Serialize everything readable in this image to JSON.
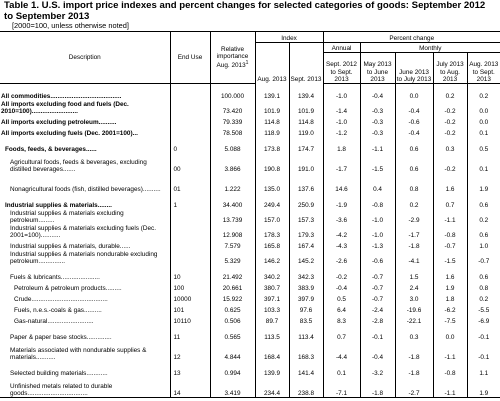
{
  "title": "Table 1. U.S. import price indexes and percent changes for selected categories of goods: September 2012 to September 2013",
  "subtitle": "[2000=100, unless otherwise noted]",
  "headers": {
    "description": "Description",
    "end_use": "End Use",
    "relative_importance": "Relative importance Aug. 2013",
    "relative_importance_sup": "1",
    "index": "Index",
    "aug_2013": "Aug. 2013",
    "sept_2013": "Sept. 2013",
    "percent_change": "Percent change",
    "annual": "Annual",
    "monthly": "Monthly",
    "sept_to_sept": "Sept. 2012 to Sept. 2013",
    "may_to_june": "May 2013 to June 2013",
    "june_to_july": "June 2013 to July 2013",
    "july_to_aug": "July 2013 to Aug. 2013",
    "aug_to_sept": "Aug. 2013 to Sept. 2013"
  },
  "rows": [
    {
      "desc": "All commodities",
      "dots": "........................................",
      "eu": "",
      "ri": "100.000",
      "aug": "139.1",
      "sep": "139.4",
      "ann": "-1.0",
      "m1": "-0.4",
      "m2": "0.0",
      "m3": "0.2",
      "m4": "0.2"
    },
    {
      "desc": "All imports excluding food and fuels (Dec. 2010=100)",
      "dots": "..........................",
      "eu": "",
      "ri": "73.420",
      "aug": "101.9",
      "sep": "101.9",
      "ann": "-1.4",
      "m1": "-0.3",
      "m2": "-0.4",
      "m3": "-0.2",
      "m4": "0.0"
    },
    {
      "desc": "All imports excluding petroleum",
      "dots": "..........",
      "eu": "",
      "ri": "79.339",
      "aug": "114.8",
      "sep": "114.8",
      "ann": "-1.0",
      "m1": "-0.3",
      "m2": "-0.6",
      "m3": "-0.2",
      "m4": "0.0"
    },
    {
      "desc": "All imports excluding fuels (Dec. 2001=100)",
      "dots": "...",
      "eu": "",
      "ri": "78.508",
      "aug": "118.9",
      "sep": "119.0",
      "ann": "-1.2",
      "m1": "-0.3",
      "m2": "-0.4",
      "m3": "-0.2",
      "m4": "0.1"
    },
    {
      "desc": "Foods, feeds, & beverages",
      "dots": "......",
      "eu": "0",
      "ri": "5.088",
      "aug": "173.8",
      "sep": "174.7",
      "ann": "1.8",
      "m1": "-1.1",
      "m2": "0.6",
      "m3": "0.3",
      "m4": "0.5"
    },
    {
      "desc": "Agricultural foods, feeds & beverages, excluding distilled beverages",
      "dots": ".......",
      "eu": "00",
      "ri": "3.866",
      "aug": "190.8",
      "sep": "191.0",
      "ann": "-1.7",
      "m1": "-1.5",
      "m2": "0.6",
      "m3": "-0.2",
      "m4": "0.1"
    },
    {
      "desc": "Nonagricultural foods (fish, distilled beverages)",
      "dots": "..........",
      "eu": "01",
      "ri": "1.222",
      "aug": "135.0",
      "sep": "137.6",
      "ann": "14.6",
      "m1": "0.4",
      "m2": "0.8",
      "m3": "1.6",
      "m4": "1.9"
    },
    {
      "desc": "Industrial supplies & materials",
      "dots": "........",
      "eu": "1",
      "ri": "34.400",
      "aug": "249.4",
      "sep": "250.9",
      "ann": "-1.9",
      "m1": "-0.8",
      "m2": "0.2",
      "m3": "0.7",
      "m4": "0.6"
    },
    {
      "desc": "Industrial supplies & materials excluding petroleum",
      "dots": ".........",
      "eu": "",
      "ri": "13.739",
      "aug": "157.0",
      "sep": "157.3",
      "ann": "-3.6",
      "m1": "-1.0",
      "m2": "-2.9",
      "m3": "-1.1",
      "m4": "0.2"
    },
    {
      "desc": "Industrial supplies & materials excluding fuels (Dec. 2001=100)",
      "dots": "...........",
      "eu": "",
      "ri": "12.908",
      "aug": "178.3",
      "sep": "179.3",
      "ann": "-4.2",
      "m1": "-1.0",
      "m2": "-1.7",
      "m3": "-0.8",
      "m4": "0.6"
    },
    {
      "desc": "Industrial supplies & materials, durable",
      "dots": "......",
      "eu": "",
      "ri": "7.579",
      "aug": "165.8",
      "sep": "167.4",
      "ann": "-4.3",
      "m1": "-1.3",
      "m2": "-1.8",
      "m3": "-0.7",
      "m4": "1.0"
    },
    {
      "desc": "Industrial supplies & materials nondurable excluding petroleum",
      "dots": "...............",
      "eu": "",
      "ri": "5.329",
      "aug": "146.2",
      "sep": "145.2",
      "ann": "-2.6",
      "m1": "-0.6",
      "m2": "-4.1",
      "m3": "-1.5",
      "m4": "-0.7"
    },
    {
      "desc": "Fuels & lubricants",
      "dots": "......................",
      "eu": "10",
      "ri": "21.492",
      "aug": "340.2",
      "sep": "342.3",
      "ann": "-0.2",
      "m1": "-0.7",
      "m2": "1.5",
      "m3": "1.6",
      "m4": "0.6"
    },
    {
      "desc": "Petroleum & petroleum products",
      "dots": ".........",
      "eu": "100",
      "ri": "20.661",
      "aug": "380.7",
      "sep": "383.9",
      "ann": "-0.4",
      "m1": "-0.7",
      "m2": "2.4",
      "m3": "1.9",
      "m4": "0.8"
    },
    {
      "desc": "Crude",
      "dots": "...........................................",
      "eu": "10000",
      "ri": "15.922",
      "aug": "397.1",
      "sep": "397.9",
      "ann": "0.5",
      "m1": "-0.7",
      "m2": "3.0",
      "m3": "1.8",
      "m4": "0.2"
    },
    {
      "desc": "Fuels, n.e.s.-coals & gas",
      "dots": "..........",
      "eu": "101",
      "ri": "0.625",
      "aug": "103.3",
      "sep": "97.6",
      "ann": "6.4",
      "m1": "-2.4",
      "m2": "-19.6",
      "m3": "-6.2",
      "m4": "-5.5"
    },
    {
      "desc": "Gas-natural",
      "dots": "..........................",
      "eu": "10110",
      "ri": "0.506",
      "aug": "89.7",
      "sep": "83.5",
      "ann": "8.3",
      "m1": "-2.8",
      "m2": "-22.1",
      "m3": "-7.5",
      "m4": "-6.9"
    },
    {
      "desc": "Paper & paper base stocks",
      "dots": "..............",
      "eu": "11",
      "ri": "0.565",
      "aug": "113.5",
      "sep": "113.4",
      "ann": "0.7",
      "m1": "-0.1",
      "m2": "0.3",
      "m3": "0.0",
      "m4": "-0.1"
    },
    {
      "desc": "Materials associated with nondurable supplies & materials",
      "dots": "...........",
      "eu": "12",
      "ri": "4.844",
      "aug": "168.4",
      "sep": "168.3",
      "ann": "-4.4",
      "m1": "-0.4",
      "m2": "-1.8",
      "m3": "-1.1",
      "m4": "-0.1"
    },
    {
      "desc": "Selected building materials",
      "dots": "............",
      "eu": "13",
      "ri": "0.994",
      "aug": "139.9",
      "sep": "141.4",
      "ann": "0.1",
      "m1": "-3.2",
      "m2": "-1.8",
      "m3": "-0.8",
      "m4": "1.1"
    },
    {
      "desc": "Unfinished metals related to durable goods",
      "dots": "..................................",
      "eu": "14",
      "ri": "3.419",
      "aug": "234.4",
      "sep": "238.8",
      "ann": "-7.1",
      "m1": "-1.8",
      "m2": "-2.7",
      "m3": "-1.1",
      "m4": "1.9"
    }
  ]
}
